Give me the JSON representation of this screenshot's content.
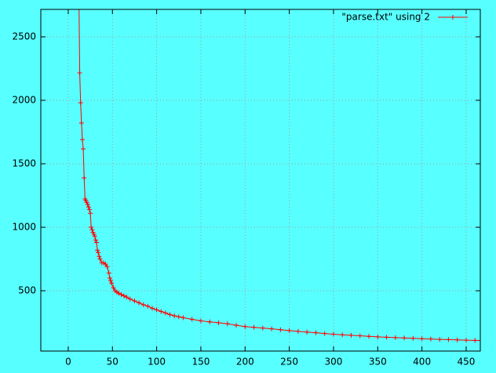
{
  "chart_data": {
    "type": "line",
    "x": [
      12,
      13,
      14,
      15,
      16,
      17,
      18,
      19,
      20,
      21,
      22,
      23,
      24,
      25,
      26,
      27,
      28,
      29,
      30,
      31,
      32,
      33,
      34,
      35,
      36,
      38,
      40,
      42,
      44,
      46,
      47,
      48,
      49,
      51,
      53,
      55,
      57,
      60,
      63,
      66,
      70,
      75,
      80,
      85,
      90,
      95,
      100,
      105,
      110,
      115,
      120,
      125,
      130,
      140,
      150,
      160,
      170,
      180,
      190,
      200,
      210,
      220,
      230,
      240,
      250,
      260,
      270,
      280,
      290,
      300,
      310,
      320,
      330,
      340,
      350,
      360,
      370,
      380,
      390,
      400,
      410,
      420,
      430,
      440,
      450,
      460,
      466
    ],
    "series": [
      {
        "name": "\"parse.txt\" using 2",
        "color": "#ff0000",
        "values": [
          2900,
          2216,
          1981,
          1821,
          1691,
          1617,
          1389,
          1222,
          1210,
          1195,
          1180,
          1160,
          1140,
          1110,
          1000,
          980,
          960,
          945,
          930,
          900,
          880,
          820,
          800,
          770,
          750,
          720,
          720,
          710,
          690,
          640,
          600,
          580,
          560,
          525,
          500,
          490,
          480,
          470,
          460,
          450,
          435,
          420,
          405,
          390,
          378,
          362,
          350,
          337,
          325,
          312,
          303,
          295,
          288,
          275,
          263,
          255,
          248,
          240,
          228,
          218,
          212,
          206,
          200,
          193,
          186,
          180,
          175,
          169,
          163,
          158,
          153,
          149,
          145,
          141,
          137,
          134,
          131,
          128,
          125,
          122,
          120,
          117,
          115,
          113,
          111,
          109,
          108
        ]
      }
    ],
    "xlim": [
      -31,
      466
    ],
    "ylim": [
      25,
      2716
    ],
    "xticks": [
      0,
      50,
      100,
      150,
      200,
      250,
      300,
      350,
      400,
      450
    ],
    "yticks": [
      500,
      1000,
      1500,
      2000,
      2500
    ],
    "grid": true,
    "legend": "top-right"
  }
}
